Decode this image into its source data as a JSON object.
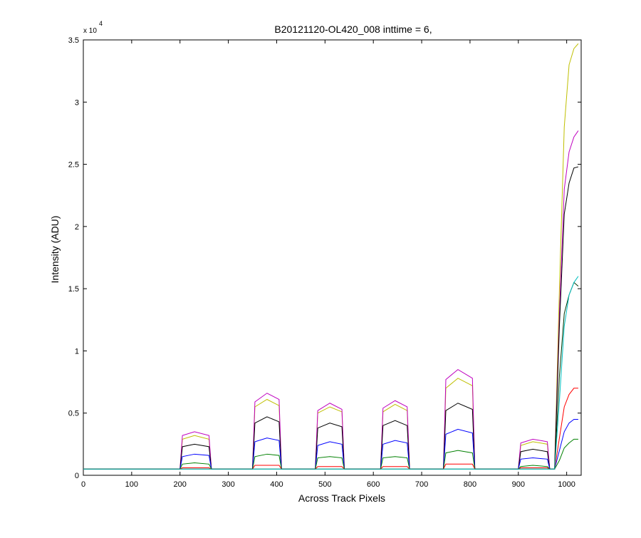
{
  "chart_data": {
    "type": "line",
    "title": "B20121120-OL420_008 inttime = 6,",
    "x_label": "Across Track Pixels",
    "y_label": "Intensity (ADU)",
    "y_multiplier": "x 10",
    "y_multiplier_exponent": "4",
    "xlim": [
      0,
      1030
    ],
    "ylim": [
      0,
      3.5
    ],
    "xticks": [
      0,
      100,
      200,
      300,
      400,
      500,
      600,
      700,
      800,
      900,
      1000
    ],
    "yticks": [
      0,
      0.5,
      1,
      1.5,
      2,
      2.5,
      3,
      3.5
    ],
    "x": [
      0,
      195,
      200,
      205,
      230,
      260,
      265,
      345,
      350,
      355,
      380,
      405,
      410,
      475,
      480,
      485,
      510,
      535,
      540,
      610,
      615,
      620,
      645,
      670,
      675,
      740,
      745,
      750,
      775,
      805,
      810,
      895,
      900,
      905,
      930,
      960,
      965,
      975,
      985,
      995,
      1005,
      1015,
      1024
    ],
    "series": [
      {
        "color": "#bfbf00",
        "values": [
          0.05,
          0.05,
          0.05,
          0.29,
          0.32,
          0.29,
          0.05,
          0.05,
          0.05,
          0.55,
          0.61,
          0.56,
          0.05,
          0.05,
          0.05,
          0.5,
          0.55,
          0.51,
          0.05,
          0.05,
          0.05,
          0.51,
          0.57,
          0.52,
          0.05,
          0.05,
          0.05,
          0.7,
          0.78,
          0.72,
          0.05,
          0.05,
          0.05,
          0.24,
          0.27,
          0.25,
          0.05,
          0.05,
          1.5,
          2.8,
          3.3,
          3.43,
          3.47
        ]
      },
      {
        "color": "#bf00bf",
        "values": [
          0.05,
          0.05,
          0.05,
          0.32,
          0.35,
          0.32,
          0.05,
          0.05,
          0.05,
          0.59,
          0.66,
          0.61,
          0.05,
          0.05,
          0.05,
          0.52,
          0.58,
          0.53,
          0.05,
          0.05,
          0.05,
          0.54,
          0.6,
          0.55,
          0.05,
          0.05,
          0.05,
          0.77,
          0.85,
          0.78,
          0.05,
          0.05,
          0.05,
          0.26,
          0.29,
          0.27,
          0.05,
          0.05,
          1.3,
          2.3,
          2.6,
          2.72,
          2.77
        ]
      },
      {
        "color": "#000000",
        "values": [
          0.05,
          0.05,
          0.05,
          0.23,
          0.25,
          0.23,
          0.05,
          0.05,
          0.05,
          0.42,
          0.47,
          0.43,
          0.05,
          0.05,
          0.05,
          0.38,
          0.42,
          0.39,
          0.05,
          0.05,
          0.05,
          0.4,
          0.44,
          0.4,
          0.05,
          0.05,
          0.05,
          0.52,
          0.58,
          0.53,
          0.05,
          0.05,
          0.05,
          0.19,
          0.21,
          0.19,
          0.05,
          0.05,
          1.2,
          2.1,
          2.35,
          2.47,
          2.48
        ]
      },
      {
        "color": "#0000ff",
        "values": [
          0.05,
          0.05,
          0.05,
          0.15,
          0.17,
          0.16,
          0.05,
          0.05,
          0.05,
          0.27,
          0.3,
          0.28,
          0.05,
          0.05,
          0.05,
          0.24,
          0.27,
          0.25,
          0.05,
          0.05,
          0.05,
          0.25,
          0.28,
          0.26,
          0.05,
          0.05,
          0.05,
          0.33,
          0.37,
          0.34,
          0.05,
          0.05,
          0.05,
          0.13,
          0.14,
          0.13,
          0.05,
          0.05,
          0.2,
          0.35,
          0.42,
          0.45,
          0.45
        ]
      },
      {
        "color": "#008000",
        "values": [
          0.05,
          0.05,
          0.05,
          0.09,
          0.1,
          0.09,
          0.05,
          0.05,
          0.05,
          0.15,
          0.17,
          0.16,
          0.05,
          0.05,
          0.05,
          0.14,
          0.15,
          0.14,
          0.05,
          0.05,
          0.05,
          0.14,
          0.15,
          0.14,
          0.05,
          0.05,
          0.05,
          0.18,
          0.2,
          0.18,
          0.05,
          0.05,
          0.05,
          0.07,
          0.08,
          0.07,
          0.05,
          0.05,
          0.12,
          0.22,
          0.26,
          0.29,
          0.29
        ]
      },
      {
        "color": "#ff0000",
        "values": [
          0.05,
          0.05,
          0.05,
          0.06,
          0.06,
          0.06,
          0.05,
          0.05,
          0.05,
          0.08,
          0.08,
          0.08,
          0.05,
          0.05,
          0.05,
          0.07,
          0.07,
          0.07,
          0.05,
          0.05,
          0.05,
          0.07,
          0.07,
          0.07,
          0.05,
          0.05,
          0.05,
          0.09,
          0.09,
          0.09,
          0.05,
          0.05,
          0.05,
          0.06,
          0.06,
          0.06,
          0.05,
          0.05,
          0.3,
          0.55,
          0.65,
          0.7,
          0.7
        ]
      },
      {
        "color": "#003300",
        "values": [
          0.05,
          0.05,
          0.05,
          0.05,
          0.05,
          0.05,
          0.05,
          0.05,
          0.05,
          0.05,
          0.05,
          0.05,
          0.05,
          0.05,
          0.05,
          0.05,
          0.05,
          0.05,
          0.05,
          0.05,
          0.05,
          0.05,
          0.05,
          0.05,
          0.05,
          0.05,
          0.05,
          0.05,
          0.05,
          0.05,
          0.05,
          0.05,
          0.05,
          0.05,
          0.05,
          0.05,
          0.05,
          0.05,
          0.8,
          1.3,
          1.45,
          1.55,
          1.52
        ]
      },
      {
        "color": "#00bfbf",
        "values": [
          0.05,
          0.05,
          0.05,
          0.05,
          0.05,
          0.05,
          0.05,
          0.05,
          0.05,
          0.05,
          0.05,
          0.05,
          0.05,
          0.05,
          0.05,
          0.05,
          0.05,
          0.05,
          0.05,
          0.05,
          0.05,
          0.05,
          0.05,
          0.05,
          0.05,
          0.05,
          0.05,
          0.05,
          0.05,
          0.05,
          0.05,
          0.05,
          0.05,
          0.05,
          0.05,
          0.05,
          0.05,
          0.05,
          0.6,
          1.2,
          1.45,
          1.55,
          1.6
        ]
      }
    ]
  }
}
